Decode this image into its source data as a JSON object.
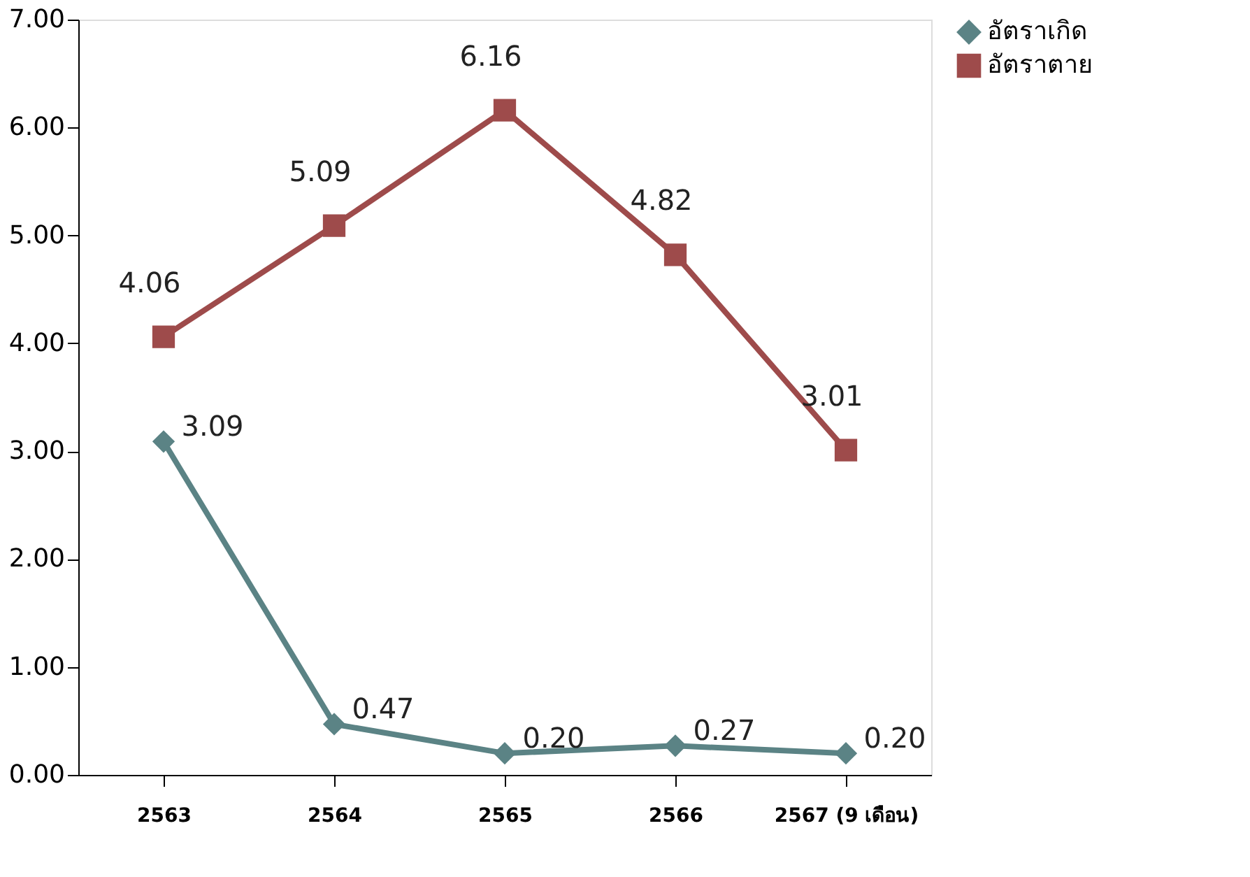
{
  "chart_data": {
    "type": "line",
    "categories": [
      "2563",
      "2564",
      "2565",
      "2566",
      "2567 (9 เดือน)"
    ],
    "series": [
      {
        "name": "อัตราเกิด",
        "color": "#5b8385",
        "marker": "diamond",
        "values": [
          3.09,
          0.47,
          0.2,
          0.27,
          0.2
        ],
        "value_labels": [
          "3.09",
          "0.47",
          "0.20",
          "0.27",
          "0.20"
        ]
      },
      {
        "name": "อัตราตาย",
        "color": "#9e4b4b",
        "marker": "square",
        "values": [
          4.06,
          5.09,
          6.16,
          4.82,
          3.01
        ],
        "value_labels": [
          "4.06",
          "5.09",
          "6.16",
          "4.82",
          "3.01"
        ]
      }
    ],
    "ylim": [
      0,
      7
    ],
    "yticks": [
      {
        "value": 0,
        "label": "0.00"
      },
      {
        "value": 1,
        "label": "1.00"
      },
      {
        "value": 2,
        "label": "2.00"
      },
      {
        "value": 3,
        "label": "3.00"
      },
      {
        "value": 4,
        "label": "4.00"
      },
      {
        "value": 5,
        "label": "5.00"
      },
      {
        "value": 6,
        "label": "6.00"
      },
      {
        "value": 7,
        "label": "7.00"
      }
    ],
    "grid": false,
    "legend": "right",
    "line_style": "solid"
  }
}
